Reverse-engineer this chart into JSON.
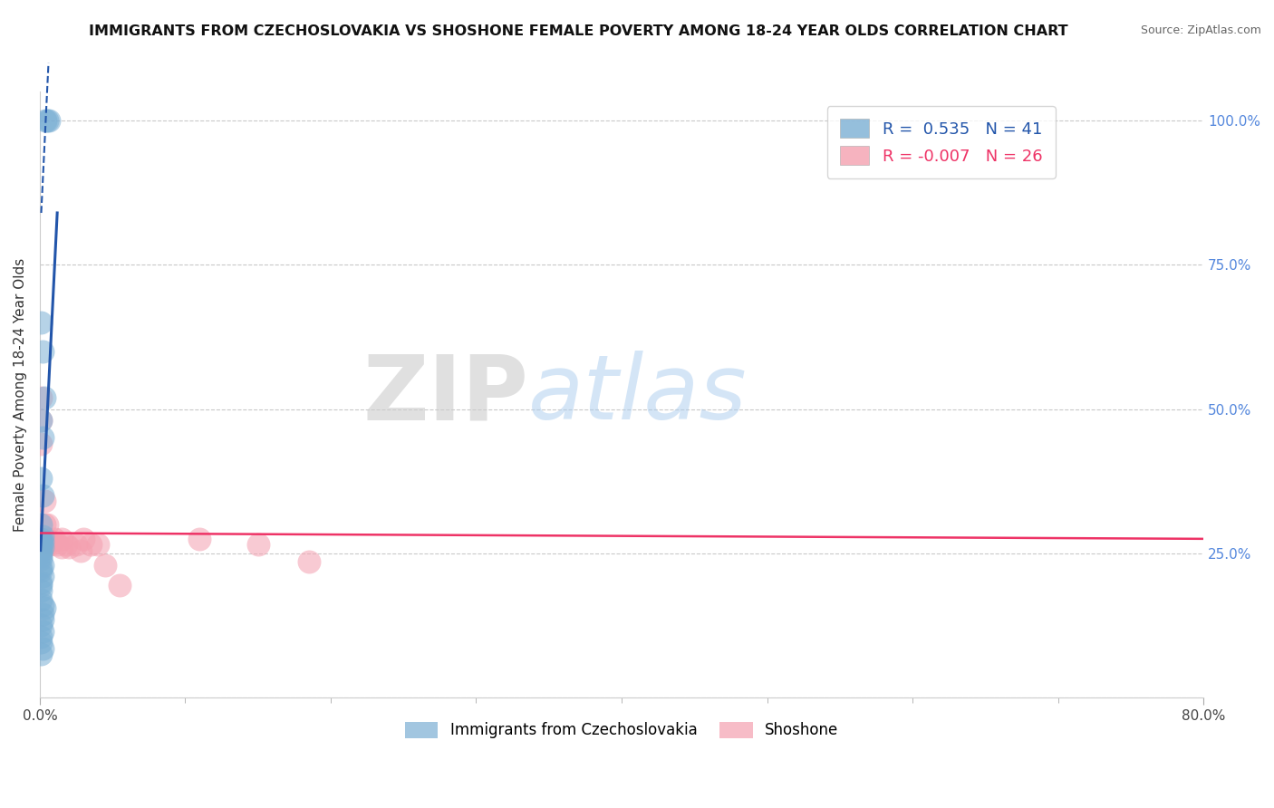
{
  "title": "IMMIGRANTS FROM CZECHOSLOVAKIA VS SHOSHONE FEMALE POVERTY AMONG 18-24 YEAR OLDS CORRELATION CHART",
  "source": "Source: ZipAtlas.com",
  "ylabel": "Female Poverty Among 18-24 Year Olds",
  "watermark_zip": "ZIP",
  "watermark_atlas": "atlas",
  "xlim": [
    0.0,
    0.8
  ],
  "ylim": [
    0.0,
    1.05
  ],
  "xtick_positions": [
    0.0,
    0.8
  ],
  "xtick_labels": [
    "0.0%",
    "80.0%"
  ],
  "ytick_vals": [
    0.0,
    0.25,
    0.5,
    0.75,
    1.0
  ],
  "right_ytick_labels": [
    "",
    "25.0%",
    "50.0%",
    "75.0%",
    "100.0%"
  ],
  "legend_blue_r": "0.535",
  "legend_blue_n": "41",
  "legend_pink_r": "-0.007",
  "legend_pink_n": "26",
  "legend_blue_label": "Immigrants from Czechoslovakia",
  "legend_pink_label": "Shoshone",
  "blue_color": "#7BAFD4",
  "pink_color": "#F4A0B0",
  "line_blue_color": "#2255AA",
  "line_pink_color": "#EE3366",
  "blue_scatter_x": [
    0.004,
    0.005,
    0.006,
    0.001,
    0.002,
    0.003,
    0.001,
    0.002,
    0.001,
    0.002,
    0.001,
    0.002,
    0.001,
    0.001,
    0.001,
    0.002,
    0.001,
    0.001,
    0.002,
    0.001,
    0.001,
    0.001,
    0.001,
    0.002,
    0.001,
    0.001,
    0.002,
    0.001,
    0.001,
    0.001,
    0.001,
    0.002,
    0.003,
    0.002,
    0.002,
    0.001,
    0.002,
    0.001,
    0.001,
    0.002,
    0.001
  ],
  "blue_scatter_y": [
    1.0,
    1.0,
    1.0,
    0.65,
    0.6,
    0.52,
    0.48,
    0.45,
    0.38,
    0.35,
    0.3,
    0.28,
    0.275,
    0.27,
    0.27,
    0.27,
    0.27,
    0.26,
    0.26,
    0.255,
    0.25,
    0.245,
    0.24,
    0.23,
    0.225,
    0.22,
    0.21,
    0.2,
    0.195,
    0.185,
    0.17,
    0.16,
    0.155,
    0.145,
    0.135,
    0.125,
    0.115,
    0.105,
    0.095,
    0.085,
    0.075
  ],
  "pink_scatter_x": [
    0.001,
    0.001,
    0.001,
    0.003,
    0.003,
    0.005,
    0.005,
    0.005,
    0.007,
    0.008,
    0.01,
    0.012,
    0.015,
    0.015,
    0.018,
    0.02,
    0.025,
    0.028,
    0.03,
    0.035,
    0.04,
    0.045,
    0.055,
    0.11,
    0.15,
    0.185
  ],
  "pink_scatter_y": [
    0.52,
    0.48,
    0.44,
    0.34,
    0.3,
    0.3,
    0.275,
    0.265,
    0.265,
    0.27,
    0.275,
    0.265,
    0.275,
    0.26,
    0.265,
    0.26,
    0.265,
    0.255,
    0.275,
    0.265,
    0.265,
    0.23,
    0.195,
    0.275,
    0.265,
    0.235
  ],
  "blue_regline": [
    [
      0.0005,
      0.012
    ],
    [
      0.255,
      0.84
    ]
  ],
  "blue_regline_dashed": [
    [
      0.001,
      0.006
    ],
    [
      0.84,
      1.1
    ]
  ],
  "pink_regline": [
    [
      0.0,
      0.8
    ],
    [
      0.285,
      0.275
    ]
  ]
}
